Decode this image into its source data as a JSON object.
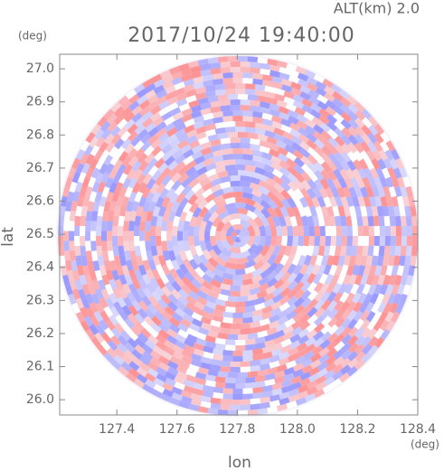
{
  "chart_data": {
    "type": "radar-ppi",
    "title": "2017/10/24 19:40:00",
    "subtitle": "ALT(km) 2.0",
    "x_label": "lon",
    "y_label": "lat",
    "x_unit": "(deg)",
    "y_unit": "(deg)",
    "xlim": [
      127.21,
      128.4
    ],
    "ylim": [
      25.954,
      27.044
    ],
    "xticks": [
      127.4,
      127.6,
      127.8,
      {
        "value": 128,
        "label": "128.0"
      },
      128.2,
      128.4
    ],
    "yticks": [
      {
        "value": 26,
        "label": "26.0"
      },
      26.1,
      26.2,
      26.3,
      26.4,
      26.5,
      26.6,
      26.7,
      26.8,
      26.9,
      {
        "value": 27,
        "label": "27.0"
      }
    ]
  }
}
